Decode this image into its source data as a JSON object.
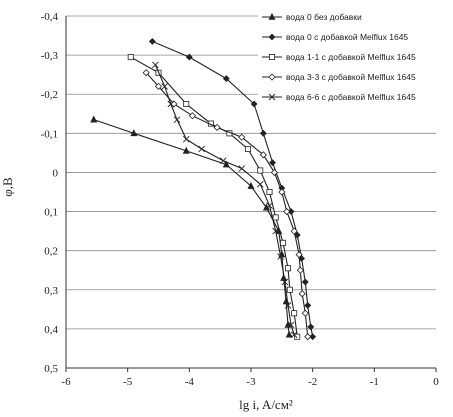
{
  "chart_data": {
    "type": "line",
    "xlabel": "lg i, A/см²",
    "ylabel": "φ,B",
    "xlim": [
      -6,
      0
    ],
    "ylim": [
      -0.4,
      0.5
    ],
    "y_inverted": true,
    "grid": "horizontal",
    "legend_position": "top-right",
    "x_ticks": [
      "-6",
      "-5",
      "-4",
      "-3",
      "-2",
      "-1",
      "0"
    ],
    "y_ticks": [
      "-0,4",
      "-0,3",
      "-0,2",
      "-0,1",
      "0",
      "0,1",
      "0,2",
      "0,3",
      "0,4",
      "0,5"
    ],
    "series": [
      {
        "name": "вода 0 без добавки",
        "marker": "triangle",
        "points": [
          [
            -5.55,
            -0.135
          ],
          [
            -4.9,
            -0.1
          ],
          [
            -4.05,
            -0.055
          ],
          [
            -3.4,
            -0.02
          ],
          [
            -3.0,
            0.035
          ],
          [
            -2.75,
            0.09
          ],
          [
            -2.55,
            0.15
          ],
          [
            -2.5,
            0.21
          ],
          [
            -2.47,
            0.27
          ],
          [
            -2.43,
            0.33
          ],
          [
            -2.4,
            0.39
          ],
          [
            -2.38,
            0.415
          ]
        ]
      },
      {
        "name": "вода 0  с добавкой Melflux 1645",
        "marker": "diamond",
        "points": [
          [
            -4.6,
            -0.335
          ],
          [
            -4.0,
            -0.295
          ],
          [
            -3.4,
            -0.24
          ],
          [
            -2.95,
            -0.175
          ],
          [
            -2.8,
            -0.1
          ],
          [
            -2.65,
            -0.025
          ],
          [
            -2.5,
            0.04
          ],
          [
            -2.35,
            0.1
          ],
          [
            -2.25,
            0.16
          ],
          [
            -2.18,
            0.22
          ],
          [
            -2.12,
            0.28
          ],
          [
            -2.08,
            0.34
          ],
          [
            -2.03,
            0.395
          ],
          [
            -2.0,
            0.42
          ]
        ]
      },
      {
        "name": "вода 1-1 с добавкой Melflux 1645",
        "marker": "square",
        "points": [
          [
            -4.95,
            -0.295
          ],
          [
            -4.5,
            -0.255
          ],
          [
            -4.05,
            -0.175
          ],
          [
            -3.65,
            -0.125
          ],
          [
            -3.35,
            -0.1
          ],
          [
            -3.05,
            -0.06
          ],
          [
            -2.85,
            -0.005
          ],
          [
            -2.7,
            0.05
          ],
          [
            -2.6,
            0.115
          ],
          [
            -2.48,
            0.18
          ],
          [
            -2.4,
            0.245
          ],
          [
            -2.37,
            0.3
          ],
          [
            -2.3,
            0.36
          ],
          [
            -2.25,
            0.42
          ]
        ]
      },
      {
        "name": "вода 3-3 с добавкой Melflux 1645",
        "marker": "diamond-open",
        "points": [
          [
            -4.7,
            -0.255
          ],
          [
            -4.5,
            -0.22
          ],
          [
            -4.25,
            -0.175
          ],
          [
            -3.95,
            -0.145
          ],
          [
            -3.55,
            -0.115
          ],
          [
            -3.15,
            -0.09
          ],
          [
            -2.8,
            -0.045
          ],
          [
            -2.62,
            0.0
          ],
          [
            -2.5,
            0.05
          ],
          [
            -2.42,
            0.1
          ],
          [
            -2.3,
            0.15
          ],
          [
            -2.22,
            0.21
          ],
          [
            -2.2,
            0.25
          ],
          [
            -2.17,
            0.31
          ],
          [
            -2.12,
            0.36
          ],
          [
            -2.08,
            0.42
          ]
        ]
      },
      {
        "name": "вода 6-6 с добавкой Melflux 1645",
        "marker": "x",
        "points": [
          [
            -4.55,
            -0.275
          ],
          [
            -4.4,
            -0.22
          ],
          [
            -4.3,
            -0.175
          ],
          [
            -4.2,
            -0.135
          ],
          [
            -4.05,
            -0.085
          ],
          [
            -3.8,
            -0.06
          ],
          [
            -3.45,
            -0.03
          ],
          [
            -3.15,
            -0.01
          ],
          [
            -2.85,
            0.03
          ],
          [
            -2.7,
            0.085
          ],
          [
            -2.6,
            0.15
          ],
          [
            -2.52,
            0.215
          ],
          [
            -2.45,
            0.28
          ],
          [
            -2.4,
            0.34
          ],
          [
            -2.35,
            0.39
          ],
          [
            -2.3,
            0.415
          ]
        ]
      }
    ]
  }
}
